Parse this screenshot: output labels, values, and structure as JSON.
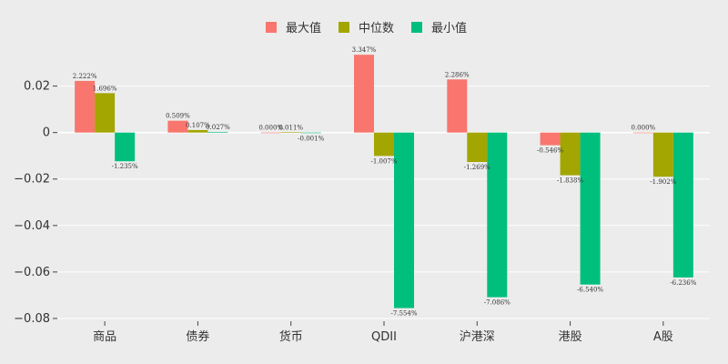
{
  "chart_data": {
    "type": "bar",
    "categories": [
      "商品",
      "债券",
      "货币",
      "QDII",
      "沪港深",
      "港股",
      "A股"
    ],
    "series": [
      {
        "name": "最大值",
        "color": "#f8766d",
        "values": [
          0.02222,
          0.00509,
          0.0,
          0.03347,
          0.02286,
          -0.00546,
          0.0
        ],
        "labels": [
          "2.222%",
          "0.509%",
          "0.000%",
          "3.347%",
          "2.286%",
          "-0.546%",
          "0.000%"
        ]
      },
      {
        "name": "中位数",
        "color": "#a3a500",
        "values": [
          0.01696,
          0.00107,
          0.00011,
          -0.01007,
          -0.01269,
          -0.01838,
          -0.01902
        ],
        "labels": [
          "1.696%",
          "0.107%",
          "0.011%",
          "-1.007%",
          "-1.269%",
          "-1.838%",
          "-1.902%"
        ]
      },
      {
        "name": "最小值",
        "color": "#00bf7d",
        "values": [
          -0.01235,
          0.00027,
          -1e-05,
          -0.07554,
          -0.07086,
          -0.0654,
          -0.06236
        ],
        "labels": [
          "-1.235%",
          "0.027%",
          "-0.001%",
          "-7.554%",
          "-7.086%",
          "-6.540%",
          "-6.236%"
        ]
      }
    ],
    "yticks": [
      0.02,
      0,
      -0.02,
      -0.04,
      -0.06,
      -0.08
    ],
    "ytick_labels": [
      "0.02",
      "0",
      "−0.02",
      "−0.04",
      "−0.06",
      "−0.08"
    ],
    "ylim": [
      -0.0808,
      0.0355
    ],
    "grid": true,
    "legend_position": "top-center",
    "title": "",
    "xlabel": "",
    "ylabel": ""
  }
}
